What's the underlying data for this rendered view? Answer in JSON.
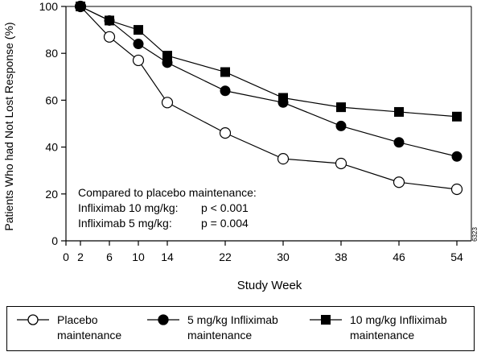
{
  "chart_data": {
    "type": "line",
    "title": "",
    "xlabel": "Study Week",
    "ylabel": "Patients Who had Not Lost Response (%)",
    "xlim": [
      0,
      56
    ],
    "ylim": [
      0,
      100
    ],
    "x_ticks": [
      0,
      2,
      6,
      10,
      14,
      22,
      30,
      38,
      46,
      54
    ],
    "y_ticks": [
      0,
      20,
      40,
      60,
      80,
      100
    ],
    "grid": false,
    "legend_position": "bottom",
    "series": [
      {
        "name": "Placebo maintenance",
        "marker": "open-circle",
        "x": [
          2,
          6,
          10,
          14,
          22,
          30,
          38,
          46,
          54
        ],
        "values": [
          100,
          87,
          77,
          59,
          46,
          35,
          33,
          25,
          22
        ]
      },
      {
        "name": "5 mg/kg Infliximab maintenance",
        "marker": "filled-circle",
        "x": [
          2,
          6,
          10,
          14,
          22,
          30,
          38,
          46,
          54
        ],
        "values": [
          100,
          94,
          84,
          76,
          64,
          59,
          49,
          42,
          36
        ]
      },
      {
        "name": "10 mg/kg Infliximab maintenance",
        "marker": "filled-square",
        "x": [
          2,
          6,
          10,
          14,
          22,
          30,
          38,
          46,
          54
        ],
        "values": [
          100,
          94,
          90,
          79,
          72,
          61,
          57,
          55,
          53
        ]
      }
    ],
    "annotations": [
      "Compared to placebo maintenance:",
      "Infliximab 10 mg/kg:",
      "p < 0.001",
      "Infliximab 5 mg/kg:",
      "p = 0.004"
    ],
    "figure_id": "6323"
  },
  "legend": [
    {
      "label": "Placebo\nmaintenance",
      "marker": "open-circle"
    },
    {
      "label": "5 mg/kg Infliximab\nmaintenance",
      "marker": "filled-circle"
    },
    {
      "label": "10 mg/kg Infliximab\nmaintenance",
      "marker": "filled-square"
    }
  ]
}
